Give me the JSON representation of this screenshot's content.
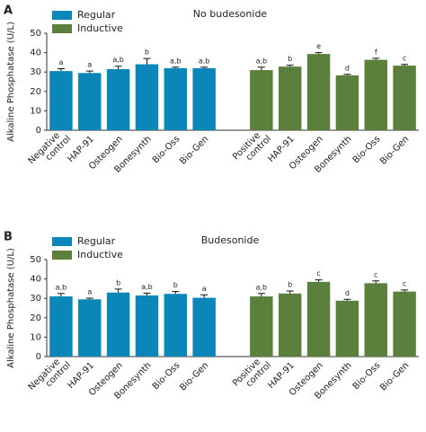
{
  "chart_data": [
    {
      "type": "bar",
      "panel": "A",
      "title": "No budesonide",
      "ylabel": "Alkaline Phosphatase (U/L)",
      "categories": [
        "Negative control",
        "HAP-91",
        "Osteogen",
        "Bonesynth",
        "Bio-Oss",
        "Bio-Gen",
        "Positive control",
        "HAP-91",
        "Osteogen",
        "Bonesynth",
        "Bio-Oss",
        "Bio-Gen"
      ],
      "series": [
        {
          "name": "Regular",
          "color": "#0a87b8",
          "values": [
            30.5,
            29.5,
            31.5,
            34,
            32,
            32,
            null,
            null,
            null,
            null,
            null,
            null
          ],
          "errors": [
            1.2,
            1,
            1.5,
            3,
            0.5,
            0.5,
            null,
            null,
            null,
            null,
            null,
            null
          ],
          "significance": [
            "a",
            "a",
            "a,b",
            "b",
            "a,b",
            "a,b",
            null,
            null,
            null,
            null,
            null,
            null
          ]
        },
        {
          "name": "Inductive",
          "color": "#5b803b",
          "values": [
            null,
            null,
            null,
            null,
            null,
            null,
            31,
            32.8,
            39.3,
            28.3,
            36.3,
            33.3
          ],
          "errors": [
            null,
            null,
            null,
            null,
            null,
            null,
            1.5,
            0.7,
            0.7,
            0.5,
            0.8,
            0.6
          ],
          "significance": [
            null,
            null,
            null,
            null,
            null,
            null,
            "a,b",
            "b",
            "e",
            "d",
            "f",
            "c"
          ]
        }
      ],
      "ylim": [
        0,
        50
      ],
      "yticks": [
        0,
        10,
        20,
        30,
        40,
        50
      ],
      "legend": "top-left"
    },
    {
      "type": "bar",
      "panel": "B",
      "title": "Budesonide",
      "ylabel": "Alkaline Phosphatase (U/L)",
      "categories": [
        "Negative control",
        "HAP-91",
        "Osteogen",
        "Bonesynth",
        "Bio-Oss",
        "Bio-Gen",
        "Positive control",
        "HAP-91",
        "Osteogen",
        "Bonesynth",
        "Bio-Oss",
        "Bio-Gen"
      ],
      "series": [
        {
          "name": "Regular",
          "color": "#0a87b8",
          "values": [
            31,
            29.5,
            33,
            31.5,
            32.3,
            30.3,
            null,
            null,
            null,
            null,
            null,
            null
          ],
          "errors": [
            1.5,
            0.6,
            1.8,
            1.2,
            1.2,
            1.5,
            null,
            null,
            null,
            null,
            null,
            null
          ],
          "significance": [
            "a,b",
            "a",
            "b",
            "a,b",
            "b",
            "a",
            null,
            null,
            null,
            null,
            null,
            null
          ]
        },
        {
          "name": "Inductive",
          "color": "#5b803b",
          "values": [
            null,
            null,
            null,
            null,
            null,
            null,
            31,
            32.5,
            38.5,
            28.8,
            37.8,
            33.5
          ],
          "errors": [
            null,
            null,
            null,
            null,
            null,
            null,
            1.5,
            1.3,
            1,
            0.7,
            1.2,
            0.8
          ],
          "significance": [
            null,
            null,
            null,
            null,
            null,
            null,
            "a,b",
            "b",
            "c",
            "d",
            "c",
            "c"
          ]
        }
      ],
      "ylim": [
        0,
        50
      ],
      "yticks": [
        0,
        10,
        20,
        30,
        40,
        50
      ],
      "legend": "top-left"
    }
  ]
}
